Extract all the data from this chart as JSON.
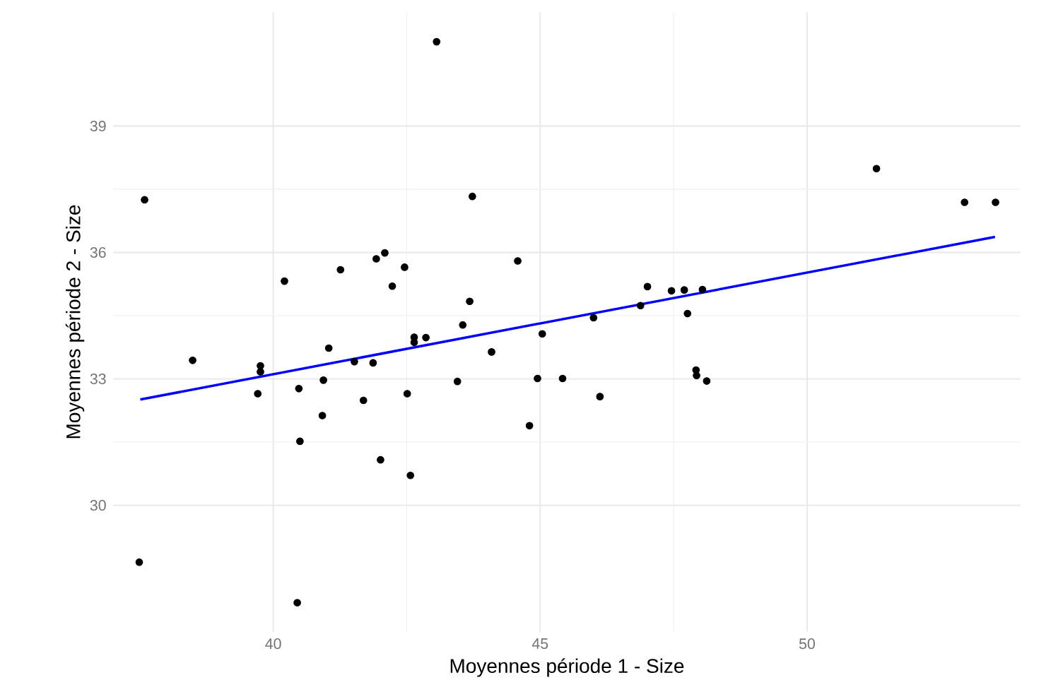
{
  "chart_data": {
    "type": "scatter",
    "xlabel": "Moyennes période 1 - Size",
    "ylabel": "Moyennes période 2 - Size",
    "xlim": [
      37.0,
      54.0
    ],
    "ylim": [
      27.0,
      41.7
    ],
    "xticks": [
      40,
      45,
      50
    ],
    "yticks": [
      30,
      33,
      36,
      39
    ],
    "grid": true,
    "marker": "circle",
    "series": [
      {
        "color": "#000000",
        "x": [
          43.06,
          37.59,
          40.21,
          41.26,
          41.93,
          42.09,
          42.46,
          42.23,
          38.49,
          39.76,
          39.76,
          41.04,
          41.52,
          41.87,
          42.64,
          42.64,
          42.86,
          39.71,
          40.48,
          40.94,
          41.69,
          42.51,
          40.92,
          40.5,
          42.01,
          42.57,
          37.49,
          40.45,
          43.73,
          44.58,
          43.68,
          43.55,
          45.04,
          44.09,
          43.45,
          44.95,
          45.42,
          44.8,
          46.12,
          46.0,
          46.88,
          47.01,
          47.46,
          47.7,
          48.04,
          47.76,
          47.92,
          47.93,
          48.12,
          51.3,
          52.95,
          53.53
        ],
        "values": [
          41.0,
          37.25,
          35.32,
          35.59,
          35.85,
          35.99,
          35.65,
          35.2,
          33.44,
          33.31,
          33.17,
          33.73,
          33.41,
          33.38,
          33.99,
          33.87,
          33.98,
          32.65,
          32.77,
          32.97,
          32.49,
          32.65,
          32.13,
          31.52,
          31.08,
          30.71,
          28.65,
          27.69,
          37.33,
          35.8,
          34.84,
          34.28,
          34.07,
          33.64,
          32.94,
          33.01,
          33.01,
          31.89,
          32.58,
          34.45,
          34.74,
          35.19,
          35.09,
          35.11,
          35.12,
          34.55,
          33.21,
          33.08,
          32.95,
          37.99,
          37.19,
          37.19
        ]
      },
      {
        "type": "line",
        "marker": "none",
        "color": "#0000ff",
        "x": [
          37.51,
          53.52
        ],
        "values": [
          32.51,
          36.37
        ]
      }
    ]
  }
}
